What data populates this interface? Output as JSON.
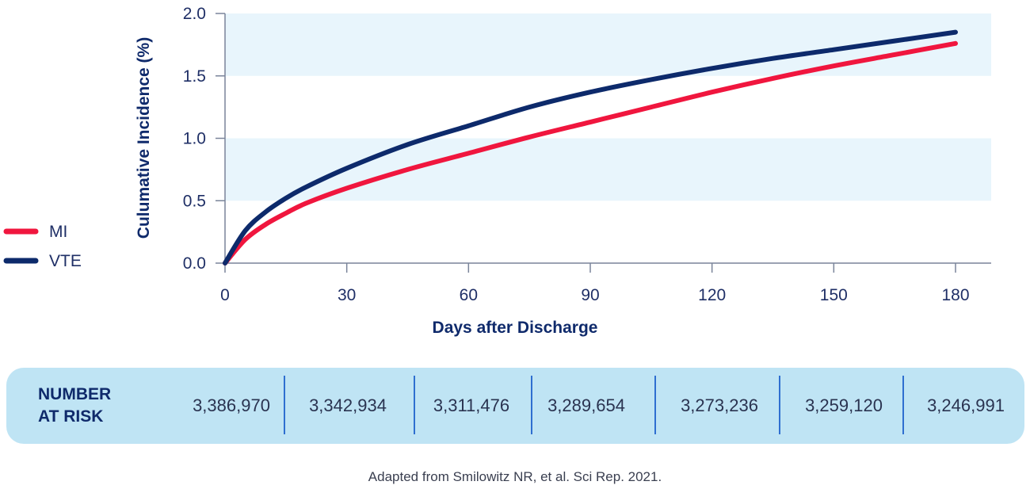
{
  "chart_data": {
    "type": "line",
    "title": "",
    "xlabel": "Days after Discharge",
    "ylabel": "Culumative Incidence (%)",
    "xlim": [
      0,
      180
    ],
    "ylim": [
      0,
      2.0
    ],
    "x_ticks": [
      0,
      30,
      60,
      90,
      120,
      150,
      180
    ],
    "y_ticks": [
      "0.0",
      "0.5",
      "1.0",
      "1.5",
      "2.0"
    ],
    "banded_background": true,
    "band_color": "#e8f5fc",
    "legend_position": "left-center",
    "series": [
      {
        "name": "MI",
        "color": "#f0163e",
        "x": [
          0,
          5,
          10,
          15,
          20,
          30,
          45,
          60,
          75,
          90,
          105,
          120,
          135,
          150,
          165,
          180
        ],
        "y": [
          0,
          0.19,
          0.31,
          0.4,
          0.48,
          0.6,
          0.75,
          0.88,
          1.01,
          1.13,
          1.25,
          1.37,
          1.48,
          1.58,
          1.67,
          1.76
        ]
      },
      {
        "name": "VTE",
        "color": "#0d2a6b",
        "x": [
          0,
          5,
          10,
          15,
          20,
          30,
          45,
          60,
          75,
          90,
          105,
          120,
          135,
          150,
          165,
          180
        ],
        "y": [
          0,
          0.26,
          0.41,
          0.52,
          0.61,
          0.76,
          0.95,
          1.1,
          1.25,
          1.37,
          1.47,
          1.56,
          1.64,
          1.71,
          1.78,
          1.85
        ]
      }
    ]
  },
  "number_at_risk": {
    "title_line1": "NUMBER",
    "title_line2": "AT RISK",
    "values": [
      "3,386,970",
      "3,342,934",
      "3,311,476",
      "3,289,654",
      "3,273,236",
      "3,259,120",
      "3,246,991"
    ]
  },
  "source_note": "Adapted from Smilowitz NR, et al. Sci Rep. 2021."
}
